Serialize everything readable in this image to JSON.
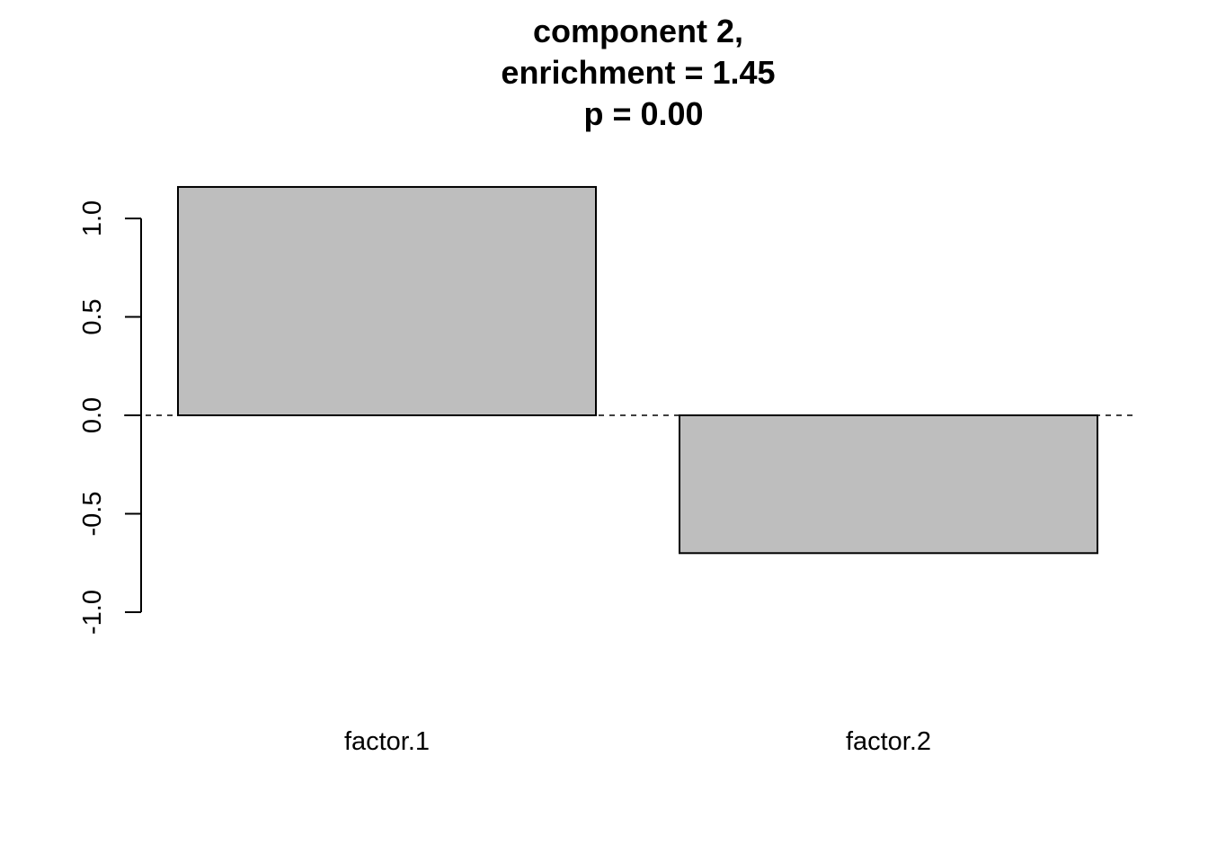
{
  "chart_data": {
    "type": "bar",
    "title_lines": [
      "component 2,",
      "enrichment = 1.45",
      "p = 0.00"
    ],
    "categories": [
      "factor.1",
      "factor.2"
    ],
    "values": [
      1.16,
      -0.7
    ],
    "ylim": [
      -1.0,
      1.0
    ],
    "yticks": [
      -1.0,
      -0.5,
      0.0,
      0.5,
      1.0
    ],
    "ytick_labels": [
      "-1.0",
      "-0.5",
      "0.0",
      "0.5",
      "1.0"
    ],
    "reference_line": 0.0,
    "bar_color": "#bebebe",
    "border_color": "#000000",
    "grid": false,
    "legend": "none"
  }
}
